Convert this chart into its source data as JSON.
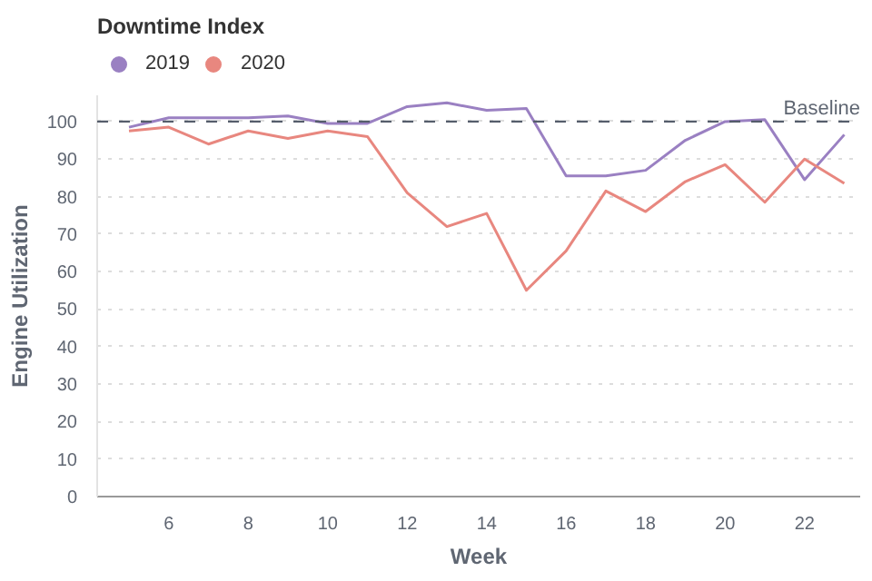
{
  "chart_data": {
    "type": "line",
    "title": "Downtime Index",
    "xlabel": "Week",
    "ylabel": "Engine Utilization",
    "x": [
      5,
      6,
      7,
      8,
      9,
      10,
      11,
      12,
      13,
      14,
      15,
      16,
      17,
      18,
      19,
      20,
      21,
      22,
      23
    ],
    "series": [
      {
        "name": "2019",
        "color": "#9a80c2",
        "values": [
          98.5,
          101,
          101,
          101,
          101.5,
          99.5,
          99.5,
          104,
          105,
          103,
          103.5,
          85.5,
          85.5,
          87,
          95,
          100,
          100.5,
          84.5,
          96.5
        ]
      },
      {
        "name": "2020",
        "color": "#e8877f",
        "values": [
          97.5,
          98.5,
          94,
          97.5,
          95.5,
          97.5,
          96,
          81,
          72,
          75.5,
          55,
          65.5,
          81.5,
          76,
          84,
          88.5,
          78.5,
          90,
          83.5
        ]
      }
    ],
    "xlim": [
      4.2,
      23.4
    ],
    "ylim": [
      0,
      107
    ],
    "xticks": [
      6,
      8,
      10,
      12,
      14,
      16,
      18,
      20,
      22
    ],
    "yticks": [
      0,
      10,
      20,
      30,
      40,
      50,
      60,
      70,
      80,
      90,
      100
    ],
    "grid": "y",
    "legend": "top left",
    "ref_lines": [
      {
        "axis": "y",
        "value": 100,
        "label": "Baseline",
        "color": "#555d6b",
        "line_style": "dashed"
      }
    ]
  }
}
